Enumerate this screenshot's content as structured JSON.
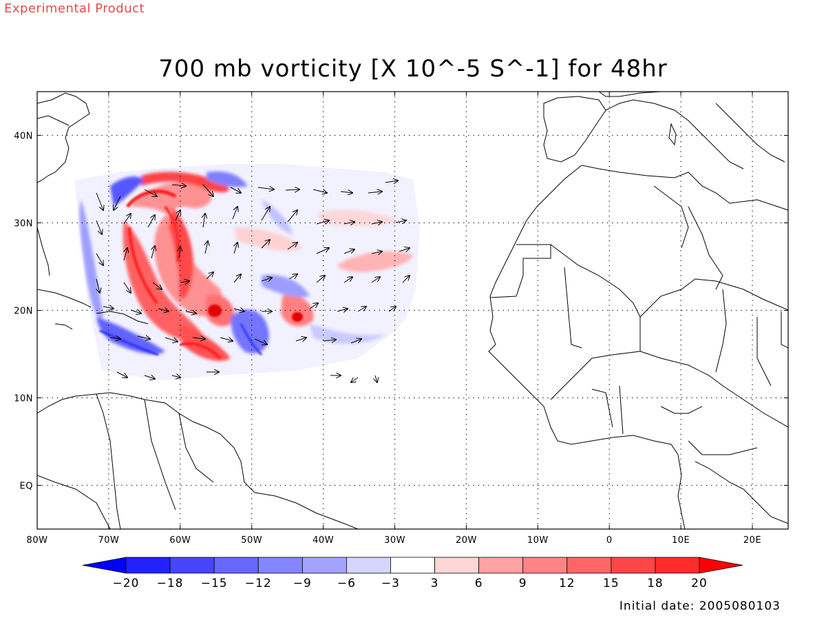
{
  "experimental_label": "Experimental Product",
  "title": "700 mb vorticity [X 10^-5 S^-1] for 48hr",
  "initial_date": "Initial date: 2005080103",
  "map": {
    "lon_range": [
      -80,
      25
    ],
    "lat_range": [
      -5,
      45
    ],
    "lon_ticks": [
      {
        "lon": -80,
        "label": "80W"
      },
      {
        "lon": -70,
        "label": "70W"
      },
      {
        "lon": -60,
        "label": "60W"
      },
      {
        "lon": -50,
        "label": "50W"
      },
      {
        "lon": -40,
        "label": "40W"
      },
      {
        "lon": -30,
        "label": "30W"
      },
      {
        "lon": -20,
        "label": "20W"
      },
      {
        "lon": -10,
        "label": "10W"
      },
      {
        "lon": 0,
        "label": "0"
      },
      {
        "lon": 10,
        "label": "10E"
      },
      {
        "lon": 20,
        "label": "20E"
      }
    ],
    "lat_ticks": [
      {
        "lat": 0,
        "label": "EQ"
      },
      {
        "lat": 10,
        "label": "10N"
      },
      {
        "lat": 20,
        "label": "20N"
      },
      {
        "lat": 30,
        "label": "30N"
      },
      {
        "lat": 40,
        "label": "40N"
      }
    ],
    "grid": true
  },
  "colorbar": {
    "labels": [
      "-20",
      "-18",
      "-15",
      "-12",
      "-9",
      "-6",
      "-3",
      "3",
      "6",
      "9",
      "12",
      "15",
      "18",
      "20"
    ],
    "colors": [
      "#2222ff",
      "#4646ff",
      "#6767ff",
      "#8585ff",
      "#a3a3ff",
      "#d5d5ff",
      "#ffffff",
      "#ffd6d6",
      "#ffa3a3",
      "#ff8585",
      "#ff6767",
      "#ff4646",
      "#ff2c2c"
    ],
    "low_extend_color": "#0000ff",
    "high_extend_color": "#ff0000"
  },
  "colors": {
    "positive": "#ff2222",
    "negative": "#3333ff",
    "coast": "#000000",
    "experimental_text": "#e34b4b"
  }
}
